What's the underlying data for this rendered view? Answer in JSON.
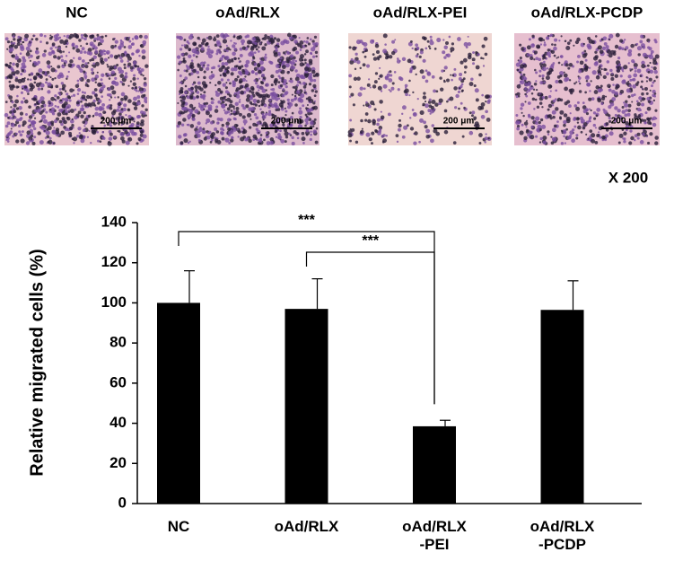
{
  "panels": [
    {
      "label": "NC"
    },
    {
      "label": "oAd/RLX"
    },
    {
      "label": "oAd/RLX-PEI"
    },
    {
      "label": "oAd/RLX-PCDP"
    }
  ],
  "scale_bar": "200 μm",
  "magnification": "X 200",
  "chart_data": {
    "type": "bar",
    "y_label": "Relative migrated cells (%)",
    "categories": [
      "NC",
      "oAd/RLX",
      "oAd/RLX\n-PEI",
      "oAd/RLX\n-PCDP"
    ],
    "values": [
      100,
      97,
      38.5,
      96.5
    ],
    "errors": [
      16,
      15,
      3,
      14.5
    ],
    "color": "#000000",
    "ylim": [
      0,
      140
    ],
    "yticks": [
      0,
      20,
      40,
      60,
      80,
      100,
      120,
      140
    ],
    "grid": false,
    "significance": [
      {
        "label": "***",
        "groups": [
          0,
          2
        ]
      },
      {
        "label": "***",
        "groups": [
          1,
          2
        ]
      }
    ]
  }
}
